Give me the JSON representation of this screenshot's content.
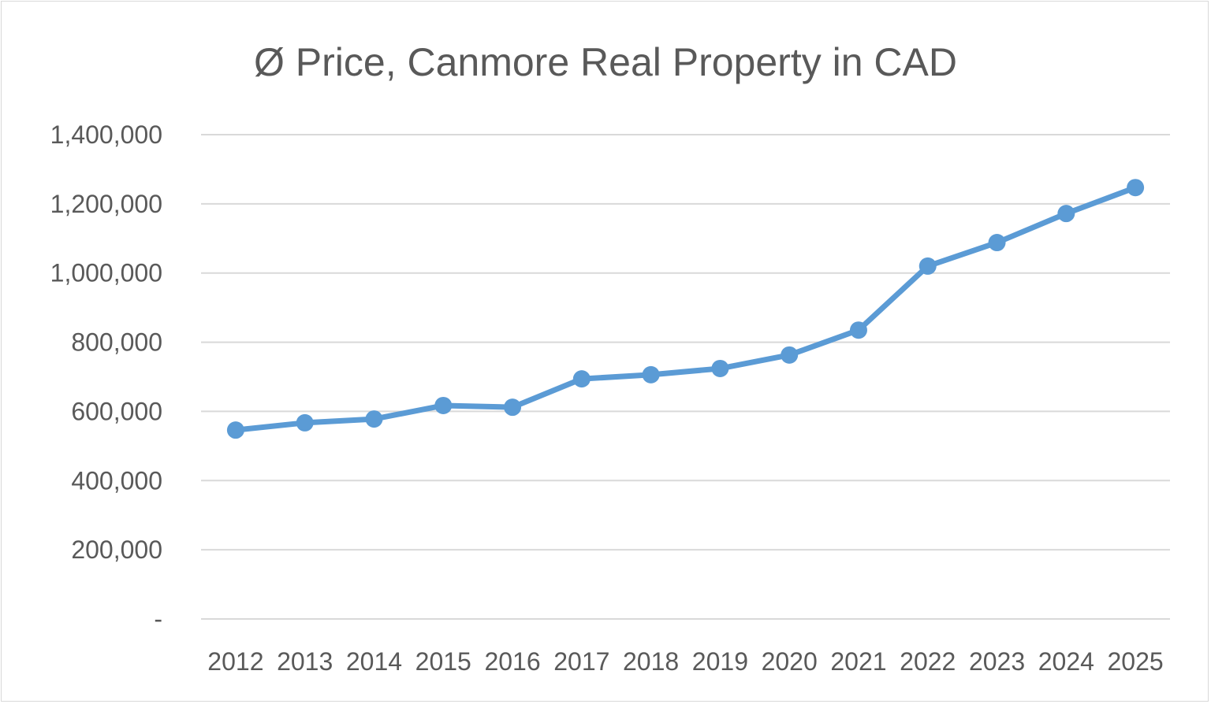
{
  "chart_data": {
    "type": "line",
    "title": "Ø Price, Canmore Real Property in CAD",
    "xlabel": "",
    "ylabel": "",
    "categories": [
      "2012",
      "2013",
      "2014",
      "2015",
      "2016",
      "2017",
      "2018",
      "2019",
      "2020",
      "2021",
      "2022",
      "2023",
      "2024",
      "2025"
    ],
    "series": [
      {
        "name": "Ø Price",
        "color": "#5b9bd5",
        "values": [
          546000,
          567000,
          578000,
          617000,
          612000,
          694000,
          706000,
          724000,
          763000,
          835000,
          1020000,
          1088000,
          1172000,
          1247000
        ]
      }
    ],
    "ylim": [
      0,
      1400000
    ],
    "yticks": [
      0,
      200000,
      400000,
      600000,
      800000,
      1000000,
      1200000,
      1400000
    ],
    "ytick_labels": [
      "-",
      "200,000",
      "400,000",
      "600,000",
      "800,000",
      "1,000,000",
      "1,200,000",
      "1,400,000"
    ],
    "grid": true,
    "legend": "none"
  }
}
